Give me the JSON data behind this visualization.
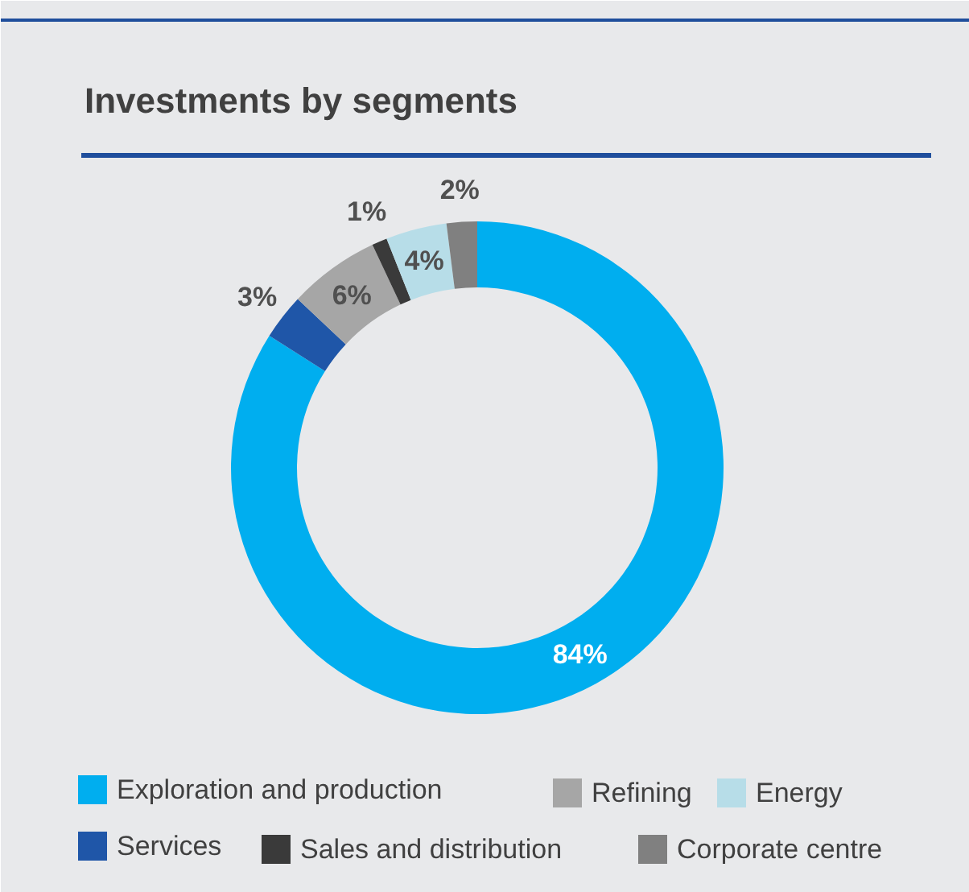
{
  "chart_data": {
    "type": "donut",
    "title": "Investments by segments",
    "categories": [
      "Exploration and production",
      "Services",
      "Refining",
      "Sales and distribution",
      "Energy",
      "Corporate centre"
    ],
    "values": [
      84,
      3,
      6,
      1,
      4,
      2
    ],
    "colors": [
      "#00aeef",
      "#1f56a8",
      "#a6a6a6",
      "#3a3a3a",
      "#b7dde8",
      "#808080"
    ],
    "value_labels": [
      "84%",
      "3%",
      "6%",
      "1%",
      "4%",
      "2%"
    ],
    "legend": "bottom"
  }
}
